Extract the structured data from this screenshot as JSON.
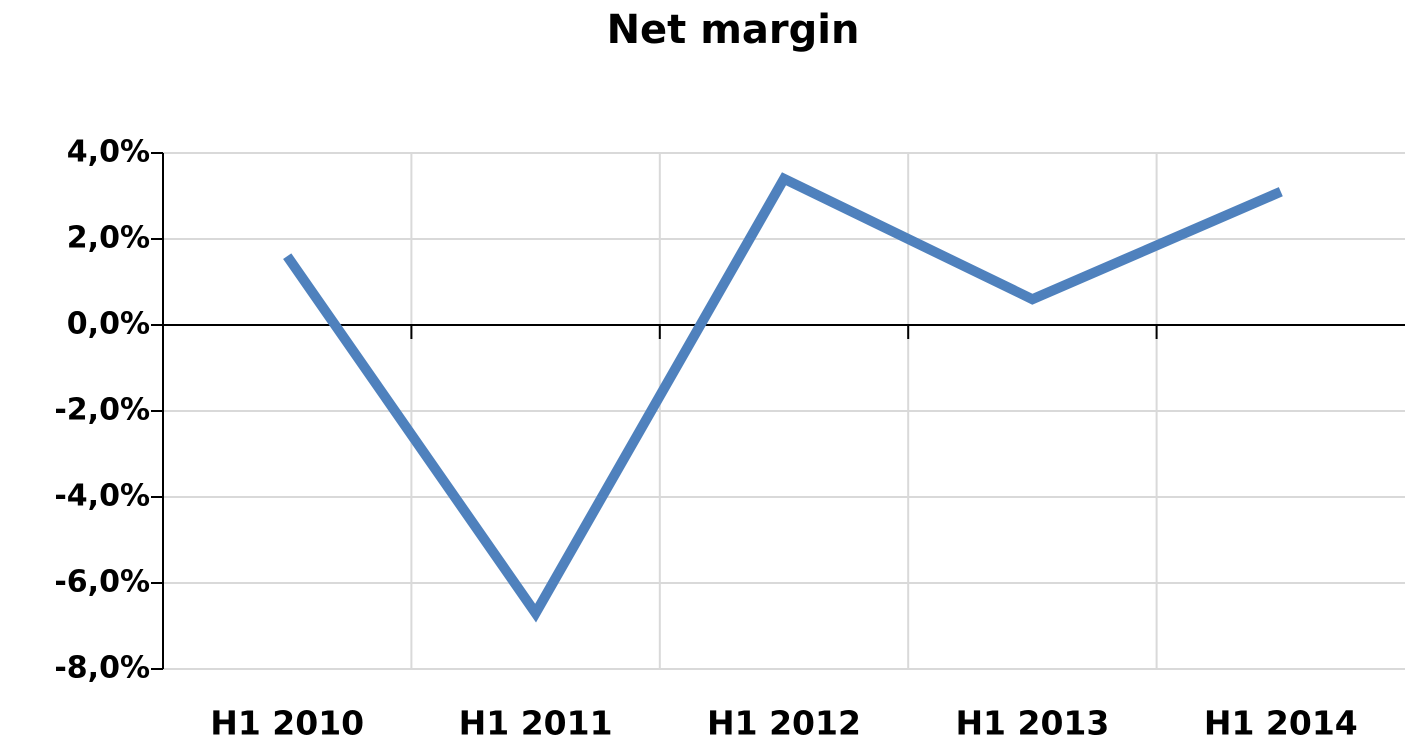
{
  "chart_data": {
    "type": "line",
    "title": "Net margin",
    "categories": [
      "H1 2010",
      "H1 2011",
      "H1 2012",
      "H1 2013",
      "H1 2014"
    ],
    "values": [
      1.6,
      -6.7,
      3.4,
      0.6,
      3.1
    ],
    "color": "#4f81bd",
    "ylim": [
      -8,
      4
    ],
    "yticks": [
      {
        "value": -8,
        "label": "-8,0%"
      },
      {
        "value": -6,
        "label": "-6,0%"
      },
      {
        "value": -4,
        "label": "-4,0%"
      },
      {
        "value": -2,
        "label": "-2,0%"
      },
      {
        "value": 0,
        "label": "0,0%"
      },
      {
        "value": 2,
        "label": "2,0%"
      },
      {
        "value": 4,
        "label": "4,0%"
      }
    ],
    "grid": true
  }
}
